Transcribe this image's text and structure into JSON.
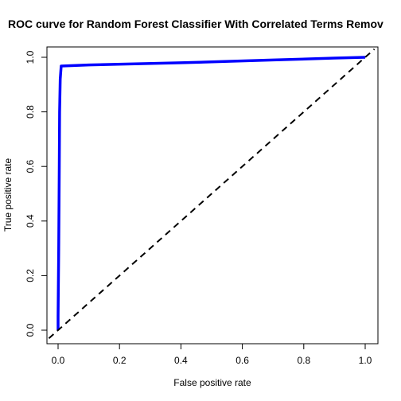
{
  "chart_data": {
    "type": "line",
    "title": "ROC curve for Random Forest Classifier With Correlated Terms Remov",
    "xlabel": "False positive rate",
    "ylabel": "True positive rate",
    "xlim": [
      0,
      1
    ],
    "ylim": [
      0,
      1
    ],
    "xticks": [
      "0.0",
      "0.2",
      "0.4",
      "0.6",
      "0.8",
      "1.0"
    ],
    "yticks": [
      "0.0",
      "0.2",
      "0.4",
      "0.6",
      "0.8",
      "1.0"
    ],
    "grid": false,
    "legend": false,
    "series": [
      {
        "color": "#0000ff",
        "style": "solid",
        "x": [
          0.0,
          0.0,
          0.002,
          0.004,
          0.005,
          0.007,
          0.01,
          0.1,
          0.4,
          0.7,
          0.9,
          1.0
        ],
        "y": [
          0.0,
          0.05,
          0.3,
          0.6,
          0.8,
          0.92,
          0.968,
          0.972,
          0.98,
          0.99,
          0.997,
          1.0
        ]
      },
      {
        "color": "#000000",
        "style": "dashed",
        "x": [
          -0.03,
          1.03
        ],
        "y": [
          -0.03,
          1.03
        ]
      }
    ]
  }
}
